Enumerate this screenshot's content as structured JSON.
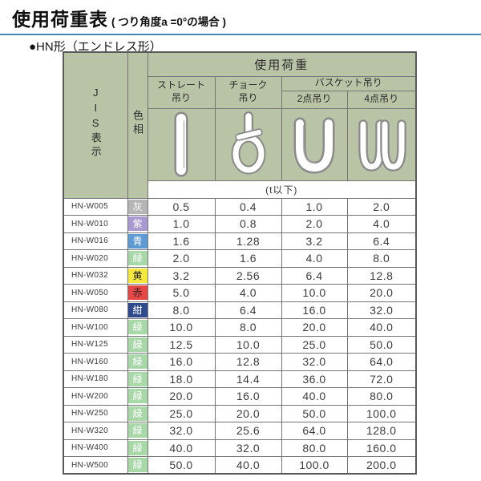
{
  "page": {
    "title": "使用荷重表",
    "title_note": "( つり角度a =0°の場合 )",
    "section": "●HN形（エンドレス形）",
    "accent_color": "#4a84b4"
  },
  "table": {
    "jis_header": "JIS表示",
    "color_header": "色相",
    "load_header": "使用荷重",
    "columns": {
      "straight": [
        "ストレート",
        "吊り"
      ],
      "choke": [
        "チョーク",
        "吊り"
      ],
      "basket": "バスケット吊り",
      "basket2": "2点吊り",
      "basket4": "4点吊り"
    },
    "unit_note": "(t以下)",
    "icons": {
      "straight": "straight-sling-icon",
      "choke": "choke-sling-icon",
      "basket2": "basket-2point-icon",
      "basket4": "basket-4point-icon"
    },
    "colors": {
      "header_bg": "#b9c4a7",
      "border": "#757575"
    },
    "rows": [
      {
        "model": "HN-W005",
        "color_name": "灰",
        "color_hex": "#b5b5b5",
        "text_color": "#ffffff",
        "values": [
          "0.5",
          "0.4",
          "1.0",
          "2.0"
        ]
      },
      {
        "model": "HN-W010",
        "color_name": "紫",
        "color_hex": "#a89ad0",
        "text_color": "#ffffff",
        "values": [
          "1.0",
          "0.8",
          "2.0",
          "4.0"
        ]
      },
      {
        "model": "HN-W016",
        "color_name": "青",
        "color_hex": "#5e9ad3",
        "text_color": "#ffffff",
        "values": [
          "1.6",
          "1.28",
          "3.2",
          "6.4"
        ]
      },
      {
        "model": "HN-W020",
        "color_name": "緑",
        "color_hex": "#a8d8a8",
        "text_color": "#ffffff",
        "values": [
          "2.0",
          "1.6",
          "4.0",
          "8.0"
        ]
      },
      {
        "model": "HN-W032",
        "color_name": "黄",
        "color_hex": "#f4e83e",
        "text_color": "#222222",
        "values": [
          "3.2",
          "2.56",
          "6.4",
          "12.8"
        ]
      },
      {
        "model": "HN-W050",
        "color_name": "赤",
        "color_hex": "#e64848",
        "text_color": "#3a2020",
        "values": [
          "5.0",
          "4.0",
          "10.0",
          "20.0"
        ]
      },
      {
        "model": "HN-W080",
        "color_name": "紺",
        "color_hex": "#2f4b8c",
        "text_color": "#ffffff",
        "values": [
          "8.0",
          "6.4",
          "16.0",
          "32.0"
        ]
      },
      {
        "model": "HN-W100",
        "color_name": "緑",
        "color_hex": "#a8d8a8",
        "text_color": "#ffffff",
        "values": [
          "10.0",
          "8.0",
          "20.0",
          "40.0"
        ]
      },
      {
        "model": "HN-W125",
        "color_name": "緑",
        "color_hex": "#a8d8a8",
        "text_color": "#ffffff",
        "values": [
          "12.5",
          "10.0",
          "25.0",
          "50.0"
        ]
      },
      {
        "model": "HN-W160",
        "color_name": "緑",
        "color_hex": "#a8d8a8",
        "text_color": "#ffffff",
        "values": [
          "16.0",
          "12.8",
          "32.0",
          "64.0"
        ]
      },
      {
        "model": "HN-W180",
        "color_name": "緑",
        "color_hex": "#a8d8a8",
        "text_color": "#ffffff",
        "values": [
          "18.0",
          "14.4",
          "36.0",
          "72.0"
        ]
      },
      {
        "model": "HN-W200",
        "color_name": "緑",
        "color_hex": "#a8d8a8",
        "text_color": "#ffffff",
        "values": [
          "20.0",
          "16.0",
          "40.0",
          "80.0"
        ]
      },
      {
        "model": "HN-W250",
        "color_name": "緑",
        "color_hex": "#a8d8a8",
        "text_color": "#ffffff",
        "values": [
          "25.0",
          "20.0",
          "50.0",
          "100.0"
        ]
      },
      {
        "model": "HN-W320",
        "color_name": "緑",
        "color_hex": "#a8d8a8",
        "text_color": "#ffffff",
        "values": [
          "32.0",
          "25.6",
          "64.0",
          "128.0"
        ]
      },
      {
        "model": "HN-W400",
        "color_name": "緑",
        "color_hex": "#a8d8a8",
        "text_color": "#ffffff",
        "values": [
          "40.0",
          "32.0",
          "80.0",
          "160.0"
        ]
      },
      {
        "model": "HN-W500",
        "color_name": "緑",
        "color_hex": "#a8d8a8",
        "text_color": "#ffffff",
        "values": [
          "50.0",
          "40.0",
          "100.0",
          "200.0"
        ]
      }
    ]
  }
}
